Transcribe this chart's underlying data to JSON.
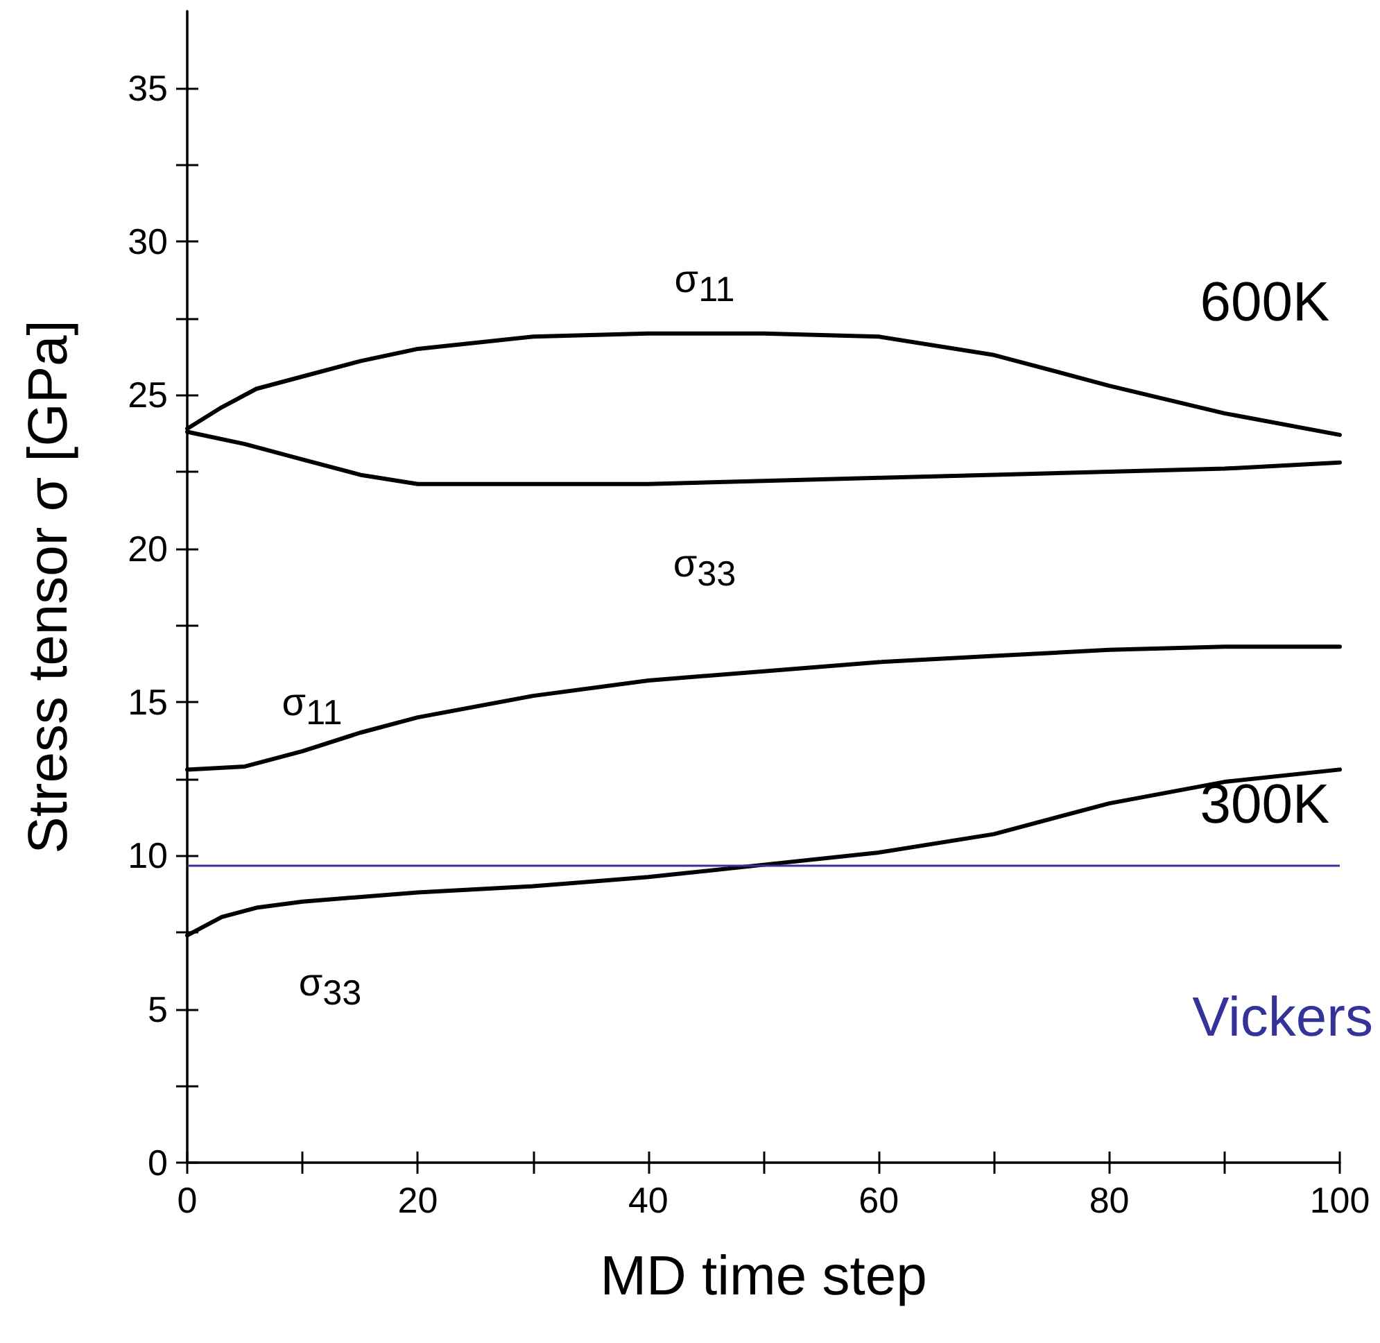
{
  "chart_data": {
    "type": "line",
    "xlabel": "MD time step",
    "ylabel": "Stress tensor σ [GPa]",
    "xlim": [
      0,
      100
    ],
    "xticks": [
      0,
      {
        "value": 10,
        "label": null
      },
      20,
      {
        "value": 30,
        "label": null
      },
      40,
      {
        "value": 50,
        "label": null
      },
      60,
      {
        "value": 70,
        "label": null
      },
      80,
      {
        "value": 90,
        "label": null
      },
      100
    ],
    "ylim": [
      0,
      37.5
    ],
    "yticks": [
      0,
      {
        "value": 2.5,
        "label": null
      },
      5,
      {
        "value": 7.5,
        "label": null
      },
      10,
      {
        "value": 12.5,
        "label": null
      },
      15,
      {
        "value": 17.5,
        "label": null
      },
      20,
      {
        "value": 22.5,
        "label": null
      },
      25,
      {
        "value": 27.5,
        "label": null
      },
      30,
      {
        "value": 32.5,
        "label": null
      },
      35
    ],
    "grid": false,
    "marker": "none",
    "line_style": "solid",
    "series": [
      {
        "color": "#000000",
        "x": [
          0,
          3,
          6,
          10,
          15,
          20,
          30,
          40,
          50,
          60,
          70,
          80,
          90,
          100
        ],
        "values": [
          23.9,
          24.6,
          25.2,
          25.6,
          26.1,
          26.5,
          26.9,
          27.0,
          27.0,
          26.9,
          26.3,
          25.3,
          24.4,
          23.7
        ]
      },
      {
        "color": "#000000",
        "x": [
          0,
          5,
          10,
          15,
          20,
          30,
          40,
          50,
          60,
          70,
          80,
          90,
          100
        ],
        "values": [
          23.8,
          23.4,
          22.9,
          22.4,
          22.1,
          22.1,
          22.1,
          22.2,
          22.3,
          22.4,
          22.5,
          22.6,
          22.8
        ]
      },
      {
        "color": "#000000",
        "x": [
          0,
          5,
          10,
          15,
          20,
          30,
          40,
          50,
          60,
          70,
          80,
          90,
          100
        ],
        "values": [
          12.8,
          12.9,
          13.4,
          14.0,
          14.5,
          15.2,
          15.7,
          16.0,
          16.3,
          16.5,
          16.7,
          16.8,
          16.8
        ]
      },
      {
        "color": "#000000",
        "x": [
          0,
          3,
          6,
          10,
          20,
          30,
          40,
          50,
          60,
          70,
          80,
          90,
          100
        ],
        "values": [
          7.4,
          8.0,
          8.3,
          8.5,
          8.8,
          9.0,
          9.3,
          9.7,
          10.1,
          10.7,
          11.7,
          12.4,
          12.8
        ]
      }
    ],
    "ref_lines": [
      {
        "axis": "y",
        "value": 9.7,
        "label": "Vickers",
        "color": "#333399"
      }
    ],
    "annotations": [
      "σ$_{11}$",
      "σ$_{33}$",
      "σ$_{11}$",
      "σ$_{33}$",
      "600K",
      "300K"
    ]
  }
}
